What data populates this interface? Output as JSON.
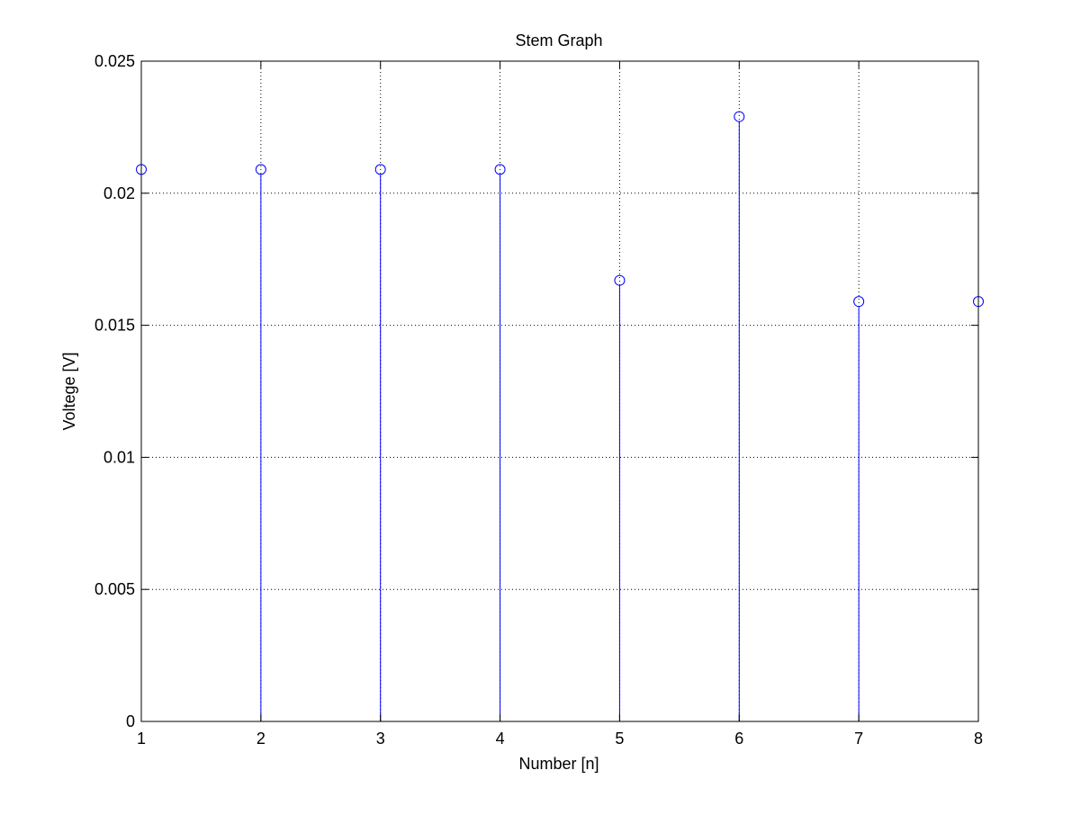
{
  "chart_data": {
    "type": "stem",
    "title": "Stem Graph",
    "xlabel": "Number [n]",
    "ylabel": "Voltege [V]",
    "xlim": [
      1,
      8
    ],
    "ylim": [
      0,
      0.025
    ],
    "x_ticks": [
      "1",
      "2",
      "3",
      "4",
      "5",
      "6",
      "7",
      "8"
    ],
    "y_ticks": [
      "0",
      "0.005",
      "0.01",
      "0.015",
      "0.02",
      "0.025"
    ],
    "grid": true,
    "series": [
      {
        "x": [
          1,
          2,
          3,
          4,
          5,
          6,
          7,
          8
        ],
        "values": [
          0.0209,
          0.0209,
          0.0209,
          0.0209,
          0.0167,
          0.0229,
          0.0159,
          0.0159
        ],
        "color": "#0000ff",
        "marker": "circle"
      }
    ]
  }
}
